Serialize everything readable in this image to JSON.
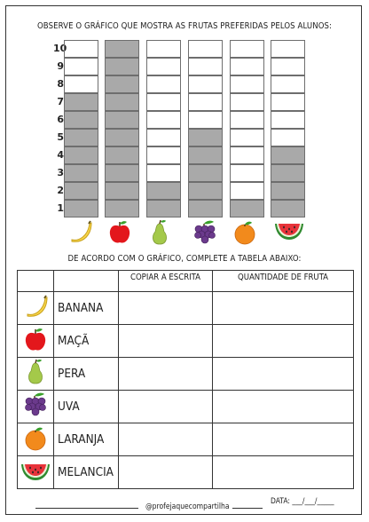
{
  "header": {
    "title": "OBSERVE O GRÁFICO QUE MOSTRA AS FRUTAS PREFERIDAS PELOS ALUNOS:"
  },
  "chart_data": {
    "type": "bar",
    "categories": [
      "banana",
      "maçã",
      "pera",
      "uva",
      "laranja",
      "melancia"
    ],
    "values": [
      7,
      10,
      2,
      5,
      1,
      4
    ],
    "ylim": [
      0,
      10
    ],
    "yticks": [
      "1",
      "2",
      "3",
      "4",
      "5",
      "6",
      "7",
      "8",
      "9",
      "10"
    ],
    "bar_color": "#a9a9a9",
    "empty_color": "#ffffff"
  },
  "instruction": "DE ACORDO COM O GRÁFICO, COMPLETE A TABELA ABAIXO:",
  "table": {
    "headers": [
      "",
      "",
      "COPIAR A ESCRITA",
      "QUANTIDADE DE FRUTA"
    ],
    "rows": [
      {
        "icon": "banana-icon",
        "name": "BANANA"
      },
      {
        "icon": "apple-icon",
        "name": "MAÇÃ"
      },
      {
        "icon": "pear-icon",
        "name": "PERA"
      },
      {
        "icon": "grapes-icon",
        "name": "UVA"
      },
      {
        "icon": "orange-icon",
        "name": "LARANJA"
      },
      {
        "icon": "watermelon-icon",
        "name": "MELANCIA"
      }
    ]
  },
  "footer": {
    "credit": "@profejaquecompartilha",
    "date_label": "DATA: ___/___/_____"
  }
}
